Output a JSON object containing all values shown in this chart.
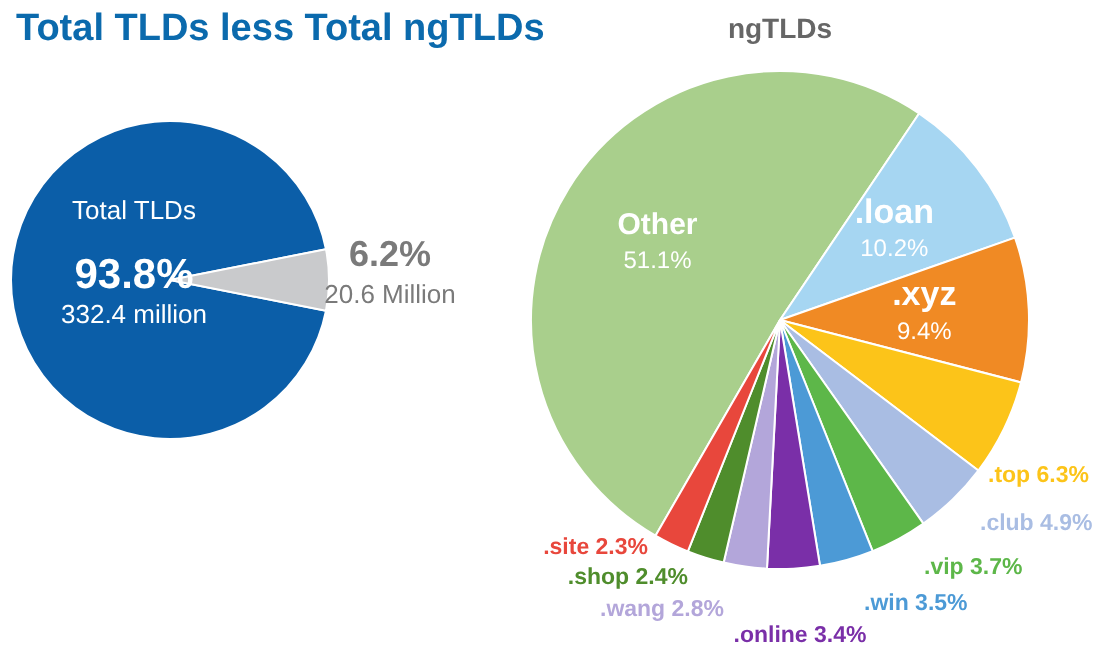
{
  "chart_data": [
    {
      "type": "pie",
      "title": "Total TLDs less Total ngTLDs",
      "categories": [
        "Total TLDs",
        null
      ],
      "values": [
        93.8,
        6.2
      ],
      "colors": [
        "#0b5ea8",
        "#c9cacc"
      ],
      "value_labels": [
        "93.8%",
        "6.2%"
      ],
      "annotations": [
        "332.4 million",
        "20.6 Million"
      ]
    },
    {
      "type": "pie",
      "title": "ngTLDs",
      "categories": [
        "Other",
        ".loan",
        ".xyz",
        ".top",
        ".club",
        ".vip",
        ".win",
        ".online",
        ".wang",
        ".shop",
        ".site"
      ],
      "values": [
        51.1,
        10.2,
        9.4,
        6.3,
        4.9,
        3.7,
        3.5,
        3.4,
        2.8,
        2.4,
        2.3
      ],
      "colors": [
        "#a9cf8c",
        "#a6d6f2",
        "#f08a24",
        "#fcc419",
        "#a9bde3",
        "#5db749",
        "#4c9ad6",
        "#7a2fa8",
        "#b3a6da",
        "#4f8d2c",
        "#e8473c"
      ],
      "value_labels": [
        "51.1%",
        "10.2%",
        "9.4%",
        "6.3%",
        "4.9%",
        "3.7%",
        "3.5%",
        "3.4%",
        "2.8%",
        "2.4%",
        "2.3%"
      ]
    }
  ]
}
